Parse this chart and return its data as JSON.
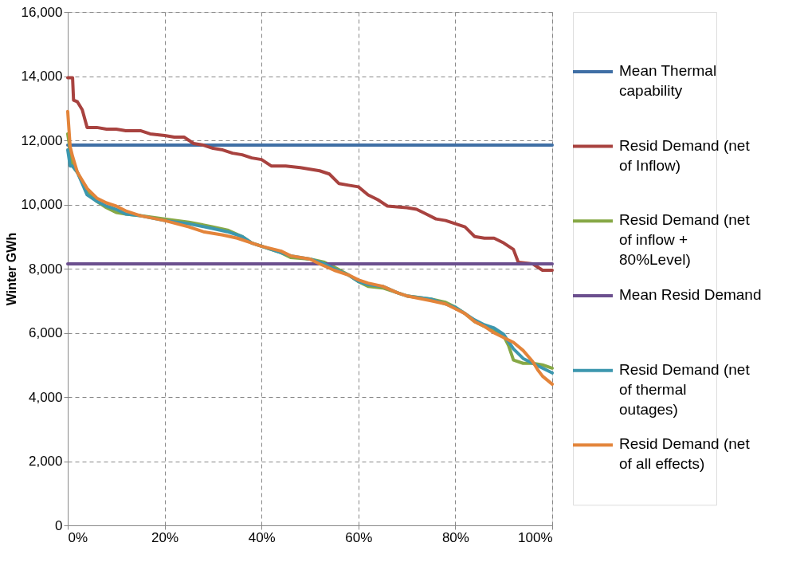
{
  "chart_data": {
    "type": "line",
    "ylabel": "Winter GWh",
    "xlim": [
      0,
      100
    ],
    "ylim": [
      0,
      16000
    ],
    "xticks": [
      {
        "value": 0,
        "label": "0%"
      },
      {
        "value": 20,
        "label": "20%"
      },
      {
        "value": 40,
        "label": "40%"
      },
      {
        "value": 60,
        "label": "60%"
      },
      {
        "value": 80,
        "label": "80%"
      },
      {
        "value": 100,
        "label": "100%"
      }
    ],
    "yticks": [
      {
        "value": 0,
        "label": "0"
      },
      {
        "value": 2000,
        "label": "2,000"
      },
      {
        "value": 4000,
        "label": "4,000"
      },
      {
        "value": 6000,
        "label": "6,000"
      },
      {
        "value": 8000,
        "label": "8,000"
      },
      {
        "value": 10000,
        "label": "10,000"
      },
      {
        "value": 12000,
        "label": "12,000"
      },
      {
        "value": 14000,
        "label": "14,000"
      },
      {
        "value": 16000,
        "label": "16,000"
      }
    ],
    "grid": true,
    "legend": "right",
    "marker": "none",
    "line_style": "solid",
    "series": [
      {
        "name": "Mean Thermal capability",
        "color": "#3f6fa5",
        "x": [
          0,
          100
        ],
        "values": [
          11850,
          11850
        ]
      },
      {
        "name": "Resid Demand (net of Inflow)",
        "color": "#a8423f",
        "x": [
          0,
          1,
          1.2,
          2,
          3,
          4,
          6,
          8,
          10,
          12,
          15,
          17,
          20,
          22,
          24,
          26,
          28,
          30,
          32,
          34,
          36,
          38,
          40,
          42,
          45,
          48,
          52,
          54,
          56,
          58,
          60,
          62,
          64,
          66,
          70,
          72,
          74,
          76,
          78,
          80,
          82,
          84,
          86,
          88,
          90,
          92,
          93,
          96,
          98,
          100
        ],
        "values": [
          13950,
          13950,
          13250,
          13200,
          12950,
          12400,
          12400,
          12350,
          12350,
          12300,
          12300,
          12200,
          12150,
          12100,
          12100,
          11900,
          11850,
          11750,
          11700,
          11600,
          11550,
          11450,
          11400,
          11200,
          11200,
          11150,
          11050,
          10950,
          10650,
          10600,
          10550,
          10300,
          10150,
          9950,
          9900,
          9850,
          9700,
          9550,
          9500,
          9400,
          9300,
          9000,
          8950,
          8950,
          8800,
          8600,
          8200,
          8150,
          7950,
          7950
        ]
      },
      {
        "name": "Resid Demand (net of inflow + 80%Level)",
        "color": "#86a845",
        "x": [
          0,
          1,
          2,
          4,
          6,
          8,
          10,
          12,
          15,
          20,
          25,
          30,
          33,
          36,
          38,
          40,
          44,
          46,
          50,
          53,
          55,
          58,
          60,
          62,
          65,
          68,
          70,
          75,
          78,
          80,
          82,
          84,
          86,
          88,
          90,
          91,
          92,
          94,
          96,
          98,
          100
        ],
        "values": [
          12200,
          11200,
          11000,
          10400,
          10100,
          9900,
          9750,
          9700,
          9650,
          9550,
          9450,
          9300,
          9200,
          9000,
          8800,
          8700,
          8500,
          8350,
          8300,
          8200,
          8050,
          7800,
          7600,
          7450,
          7400,
          7250,
          7150,
          7050,
          6950,
          6800,
          6600,
          6350,
          6200,
          6050,
          5900,
          5600,
          5150,
          5050,
          5050,
          5000,
          4900
        ]
      },
      {
        "name": "Mean Resid Demand",
        "color": "#6b4f8e",
        "x": [
          0,
          100
        ],
        "values": [
          8150,
          8150
        ]
      },
      {
        "name": "Resid Demand (net of thermal outages)",
        "color": "#3c97ae",
        "x": [
          0,
          0.5,
          1,
          2,
          4,
          6,
          8,
          10,
          12,
          15,
          20,
          25,
          30,
          33,
          36,
          38,
          40,
          44,
          46,
          50,
          53,
          55,
          58,
          60,
          62,
          65,
          68,
          70,
          75,
          78,
          80,
          82,
          84,
          86,
          88,
          90,
          92,
          94,
          96,
          98,
          100
        ],
        "values": [
          11700,
          11200,
          11200,
          11000,
          10300,
          10100,
          9950,
          9850,
          9700,
          9650,
          9500,
          9400,
          9250,
          9150,
          9000,
          8800,
          8700,
          8500,
          8400,
          8300,
          8150,
          8000,
          7800,
          7600,
          7500,
          7450,
          7250,
          7150,
          7050,
          6900,
          6800,
          6600,
          6400,
          6250,
          6150,
          5950,
          5500,
          5200,
          5050,
          4900,
          4750
        ]
      },
      {
        "name": "Resid Demand (net of all effects)",
        "color": "#e3843a",
        "x": [
          0,
          0.5,
          1,
          2,
          4,
          6,
          8,
          10,
          12,
          15,
          20,
          25,
          28,
          32,
          35,
          38,
          40,
          44,
          46,
          50,
          52,
          55,
          58,
          60,
          62,
          65,
          68,
          70,
          75,
          78,
          80,
          82,
          84,
          86,
          88,
          90,
          92,
          94,
          96,
          97,
          98,
          100
        ],
        "values": [
          12900,
          11800,
          11500,
          11000,
          10500,
          10200,
          10050,
          9950,
          9800,
          9650,
          9500,
          9300,
          9150,
          9050,
          8950,
          8800,
          8700,
          8550,
          8400,
          8300,
          8150,
          7950,
          7800,
          7650,
          7550,
          7450,
          7250,
          7150,
          7000,
          6900,
          6750,
          6600,
          6350,
          6200,
          6000,
          5850,
          5700,
          5450,
          5100,
          4850,
          4650,
          4400
        ]
      }
    ]
  }
}
